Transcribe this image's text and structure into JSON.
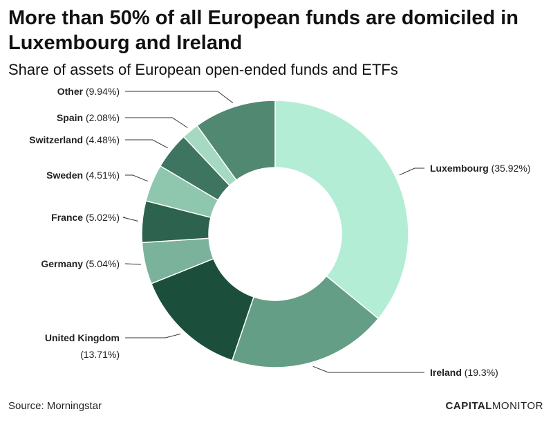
{
  "title": "More than 50% of all European funds are domiciled in Luxembourg and Ireland",
  "subtitle": "Share of assets of European open-ended funds and ETFs",
  "source": "Source: Morningstar",
  "logo": {
    "bold": "CAPITAL",
    "light": "MONITOR"
  },
  "chart_data": {
    "type": "pie",
    "donut": true,
    "title": "More than 50% of all European funds are domiciled in Luxembourg and Ireland",
    "subtitle": "Share of assets of European open-ended funds and ETFs",
    "slices": [
      {
        "name": "Luxembourg",
        "value": 35.92,
        "label": "(35.92%)",
        "color": "#b4edd5"
      },
      {
        "name": "Ireland",
        "value": 19.3,
        "label": "(19.3%)",
        "color": "#659e86"
      },
      {
        "name": "United Kingdom",
        "value": 13.71,
        "label": "(13.71%)",
        "color": "#1b4f3c"
      },
      {
        "name": "Germany",
        "value": 5.04,
        "label": "(5.04%)",
        "color": "#7bb29b"
      },
      {
        "name": "France",
        "value": 5.02,
        "label": "(5.02%)",
        "color": "#2d624e"
      },
      {
        "name": "Sweden",
        "value": 4.51,
        "label": "(4.51%)",
        "color": "#8ec6ae"
      },
      {
        "name": "Switzerland",
        "value": 4.48,
        "label": "(4.48%)",
        "color": "#3e7560"
      },
      {
        "name": "Spain",
        "value": 2.08,
        "label": "(2.08%)",
        "color": "#a5d9c2"
      },
      {
        "name": "Other",
        "value": 9.94,
        "label": "(9.94%)",
        "color": "#508871"
      }
    ]
  }
}
